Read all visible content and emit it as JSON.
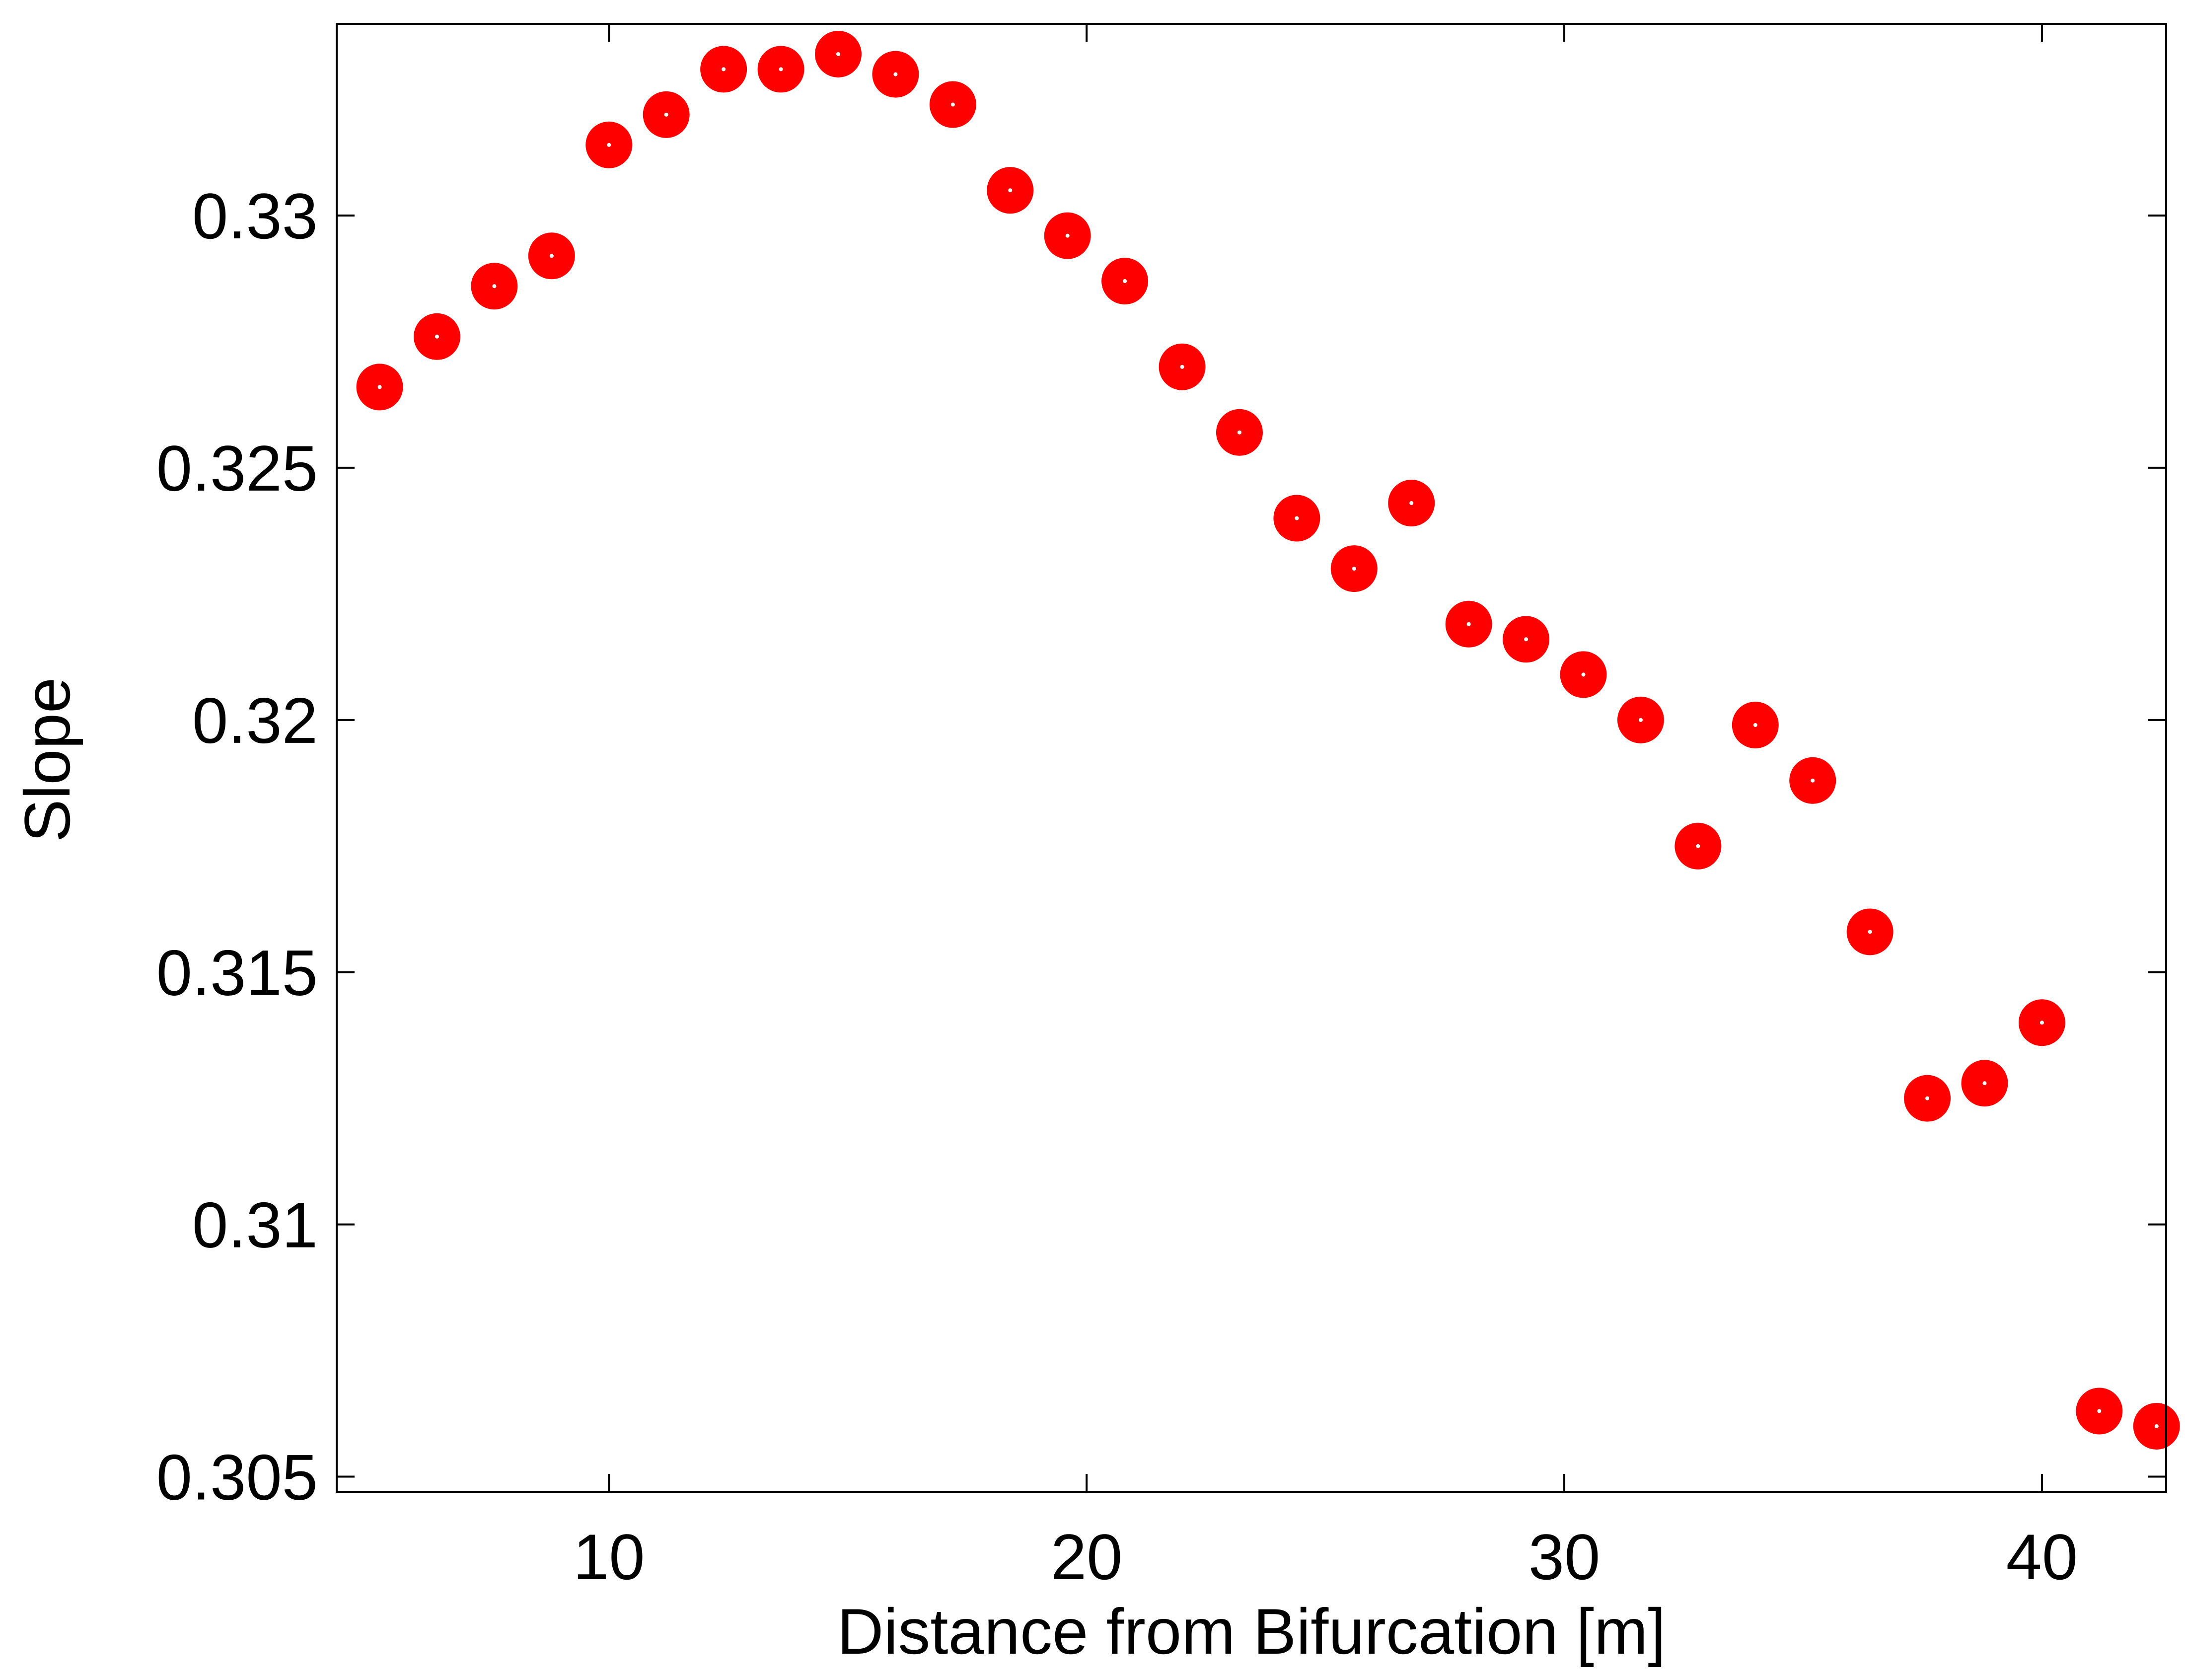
{
  "chart_data": {
    "type": "scatter",
    "title": "",
    "xlabel": "Distance from Bifurcation [m]",
    "ylabel": "Slope",
    "xlim": [
      4.3,
      42.6
    ],
    "ylim": [
      0.3047,
      0.3338
    ],
    "xticks": [
      10,
      20,
      30,
      40
    ],
    "xtick_labels": [
      "10",
      "20",
      "30",
      "40"
    ],
    "yticks": [
      0.305,
      0.31,
      0.315,
      0.32,
      0.325,
      0.33
    ],
    "ytick_labels": [
      "0.305",
      "0.31",
      "0.315",
      "0.32",
      "0.325",
      "0.33"
    ],
    "grid": false,
    "legend": "none",
    "marker_color": "#ff0000",
    "marker_center_color": "#ffffff",
    "series": [
      {
        "x": [
          5.2,
          6.4,
          7.6,
          8.8,
          10.0,
          11.2,
          12.4,
          13.6,
          14.8,
          16.0,
          17.2,
          18.4,
          19.6,
          20.8,
          22.0,
          23.2,
          24.4,
          25.6,
          26.8,
          28.0,
          29.2,
          30.4,
          31.6,
          32.8,
          34.0,
          35.2,
          36.4,
          37.6,
          38.8,
          40.0,
          41.2,
          42.4
        ],
        "y": [
          0.3266,
          0.3276,
          0.3286,
          0.3292,
          0.3314,
          0.332,
          0.3329,
          0.3329,
          0.3332,
          0.3328,
          0.3322,
          0.3305,
          0.3296,
          0.3287,
          0.327,
          0.3257,
          0.324,
          0.323,
          0.3243,
          0.3219,
          0.3216,
          0.3209,
          0.32,
          0.3175,
          0.3199,
          0.3188,
          0.3158,
          0.3125,
          0.3128,
          0.314,
          0.3063,
          0.306
        ]
      }
    ]
  }
}
